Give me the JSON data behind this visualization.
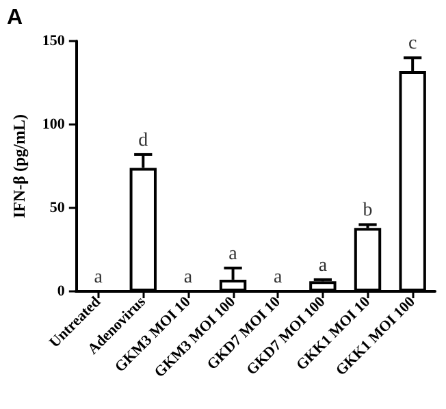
{
  "chart_data": {
    "type": "bar",
    "title": "A",
    "ylabel": "IFN-β (pg/mL)",
    "categories": [
      "Untreated",
      "Adenovirus",
      "GKM3 MOI 10",
      "GKM3 MOI 100",
      "GKD7 MOI 10",
      "GKD7 MOI 100",
      "GKK1 MOI 10",
      "GKK1 MOI 100"
    ],
    "values": [
      0,
      74,
      0,
      7,
      0,
      6,
      38,
      132
    ],
    "errors": [
      null,
      [
        74,
        82
      ],
      null,
      [
        7,
        14
      ],
      null,
      [
        6,
        7
      ],
      [
        38,
        40
      ],
      [
        132,
        140
      ]
    ],
    "color": "#ffffff",
    "ylim": [
      0,
      150
    ],
    "yticks": [
      0,
      50,
      100,
      150
    ],
    "grid": false,
    "annotations": [
      {
        "text": "a",
        "x": "Untreated",
        "y": 0
      },
      {
        "text": "d",
        "x": "Adenovirus",
        "y": 82
      },
      {
        "text": "a",
        "x": "GKM3 MOI 10",
        "y": 0
      },
      {
        "text": "a",
        "x": "GKM3 MOI 100",
        "y": 14
      },
      {
        "text": "a",
        "x": "GKD7 MOI 10",
        "y": 0
      },
      {
        "text": "a",
        "x": "GKD7 MOI 100",
        "y": 7
      },
      {
        "text": "b",
        "x": "GKK1 MOI 10",
        "y": 40
      },
      {
        "text": "c",
        "x": "GKK1 MOI 100",
        "y": 140
      }
    ]
  }
}
